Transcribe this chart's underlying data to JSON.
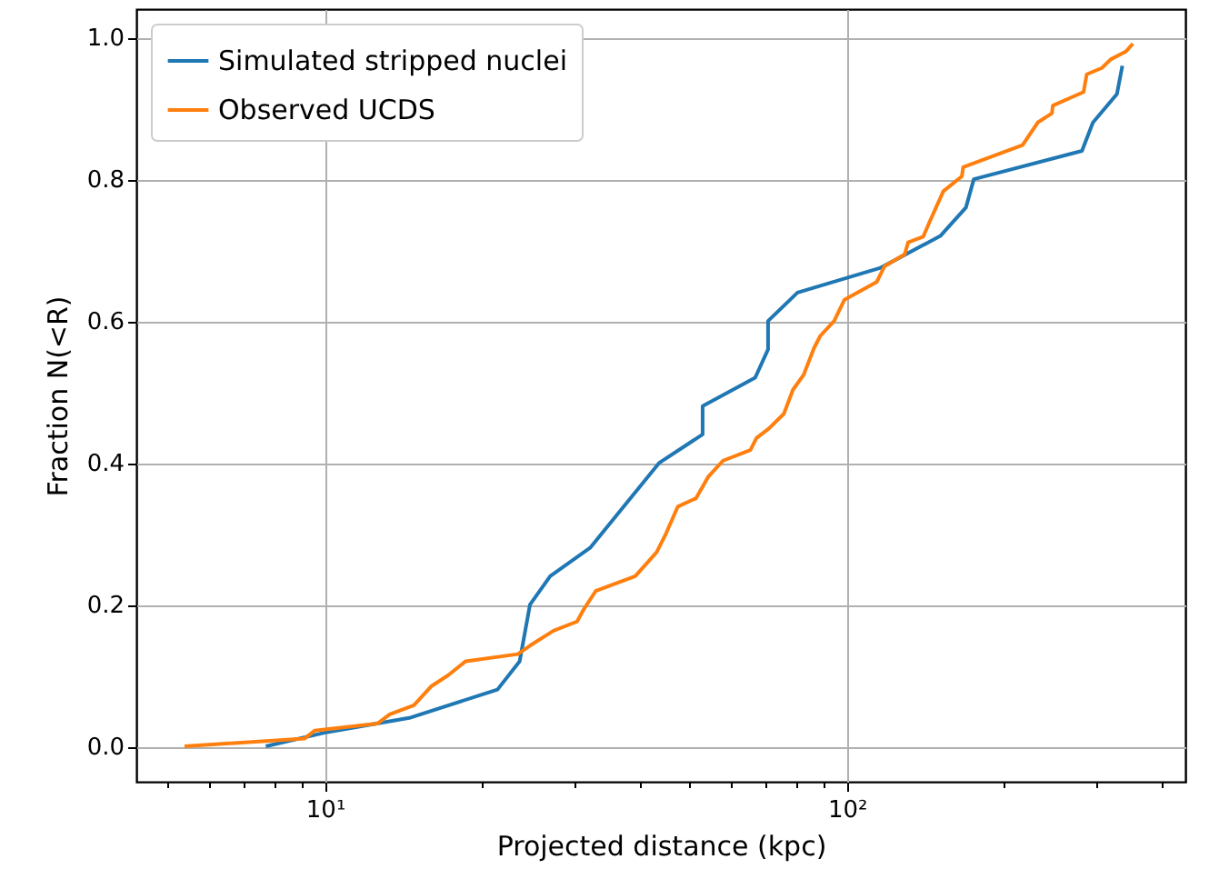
{
  "chart_data": {
    "type": "line",
    "xlabel": "Projected distance (kpc)",
    "ylabel": "Fraction N(<R)",
    "log": "x",
    "grid": true,
    "legend": "top left",
    "line_style": "solid",
    "marker": "none",
    "xlim": [
      4.35,
      445
    ],
    "ylim": [
      -0.05,
      1.04
    ],
    "xticks": [
      {
        "value": 5,
        "label": null
      },
      {
        "value": 6,
        "label": null
      },
      {
        "value": 7,
        "label": null
      },
      {
        "value": 8,
        "label": null
      },
      {
        "value": 9,
        "label": null
      },
      {
        "value": 10,
        "label": "10¹"
      },
      {
        "value": 20,
        "label": null
      },
      {
        "value": 30,
        "label": null
      },
      {
        "value": 40,
        "label": null
      },
      {
        "value": 50,
        "label": null
      },
      {
        "value": 60,
        "label": null
      },
      {
        "value": 70,
        "label": null
      },
      {
        "value": 80,
        "label": null
      },
      {
        "value": 90,
        "label": null
      },
      {
        "value": 100,
        "label": "10²"
      },
      {
        "value": 200,
        "label": null
      },
      {
        "value": 300,
        "label": null
      },
      {
        "value": 400,
        "label": null
      }
    ],
    "yticks": [
      {
        "value": 0,
        "label": "0.0"
      },
      0.2,
      0.4,
      0.6,
      0.8,
      {
        "value": 1,
        "label": "1.0"
      }
    ],
    "series": [
      {
        "name": "Simulated stripped nuclei",
        "color": "#1f77b4",
        "x": [
          7.7,
          10.1,
          14.5,
          21.4,
          23.6,
          24.7,
          27,
          32.2,
          43.7,
          52.9,
          52.9,
          66.7,
          70.6,
          70.6,
          80.4,
          116,
          151,
          169,
          175,
          282,
          296,
          329,
          337
        ],
        "values": [
          0,
          0.02,
          0.04,
          0.08,
          0.12,
          0.2,
          0.24,
          0.28,
          0.4,
          0.44,
          0.48,
          0.52,
          0.56,
          0.6,
          0.64,
          0.675,
          0.72,
          0.76,
          0.8,
          0.84,
          0.88,
          0.92,
          0.96
        ]
      },
      {
        "name": "Observed UCDS",
        "color": "#ff7f0e",
        "x": [
          5.38,
          9.14,
          9.55,
          12.6,
          13.3,
          14.8,
          16.0,
          17.2,
          18.6,
          23.4,
          24.7,
          27.4,
          30.4,
          31.3,
          33.0,
          39.3,
          43.2,
          45.0,
          47.4,
          51.4,
          54.2,
          57.9,
          65.3,
          67.1,
          70.8,
          75.7,
          78.8,
          82.6,
          86.5,
          88.9,
          94.5,
          98.9,
          114,
          118,
          129,
          131,
          140,
          144,
          153,
          166,
          167,
          217,
          232,
          247,
          248,
          284,
          288,
          308,
          320,
          342,
          353
        ],
        "values": [
          0,
          0.011,
          0.022,
          0.032,
          0.045,
          0.058,
          0.085,
          0.1,
          0.12,
          0.13,
          0.142,
          0.163,
          0.176,
          0.193,
          0.219,
          0.24,
          0.274,
          0.3,
          0.338,
          0.35,
          0.38,
          0.403,
          0.418,
          0.435,
          0.448,
          0.469,
          0.503,
          0.524,
          0.562,
          0.579,
          0.6,
          0.63,
          0.655,
          0.677,
          0.694,
          0.711,
          0.719,
          0.74,
          0.783,
          0.804,
          0.817,
          0.848,
          0.88,
          0.893,
          0.904,
          0.923,
          0.948,
          0.957,
          0.969,
          0.98,
          0.991
        ]
      }
    ]
  }
}
